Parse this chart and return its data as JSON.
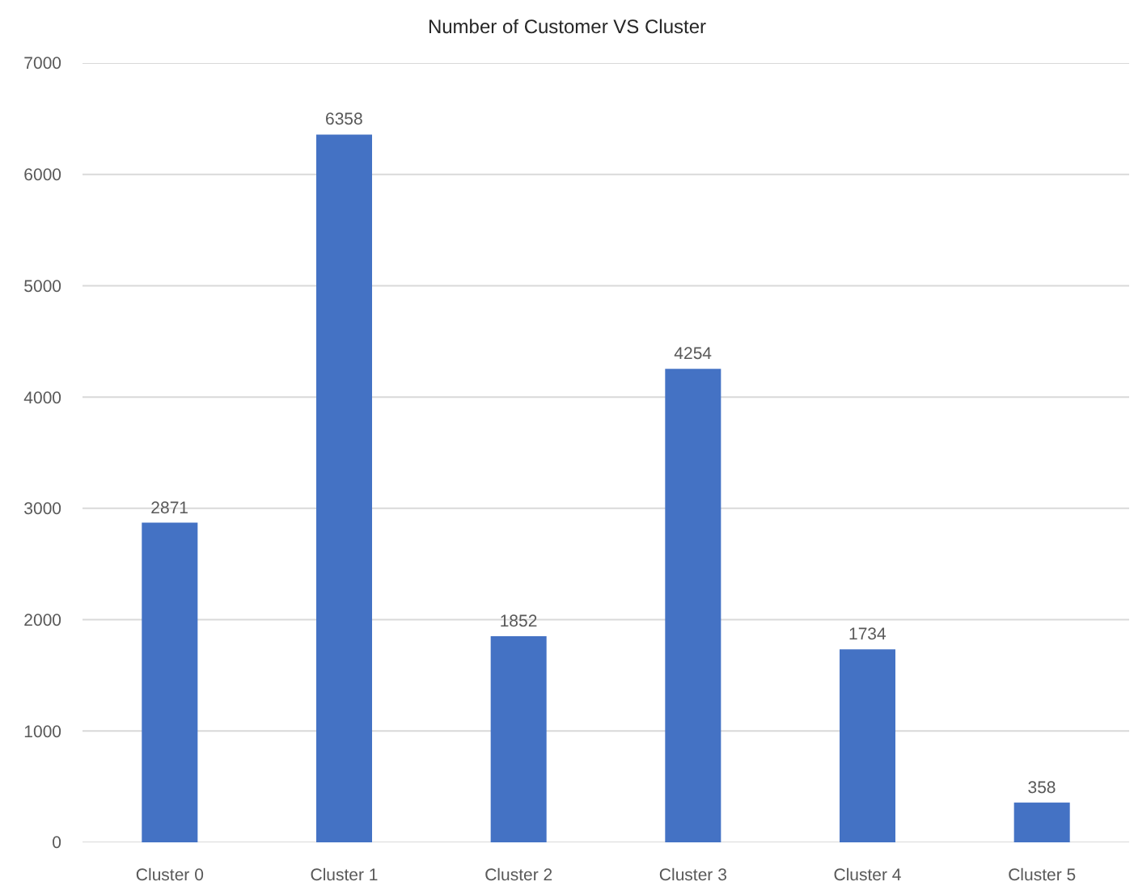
{
  "chart_data": {
    "type": "bar",
    "title": "Number of Customer VS Cluster",
    "categories": [
      "Cluster 0",
      "Cluster 1",
      "Cluster 2",
      "Cluster 3",
      "Cluster 4",
      "Cluster 5"
    ],
    "values": [
      2871,
      6358,
      1852,
      4254,
      1734,
      358
    ],
    "color": "#4472c4",
    "ylim": [
      0,
      7000
    ],
    "yticks": [
      0,
      1000,
      2000,
      3000,
      4000,
      5000,
      6000,
      7000
    ],
    "grid": "y",
    "data_labels": true
  }
}
